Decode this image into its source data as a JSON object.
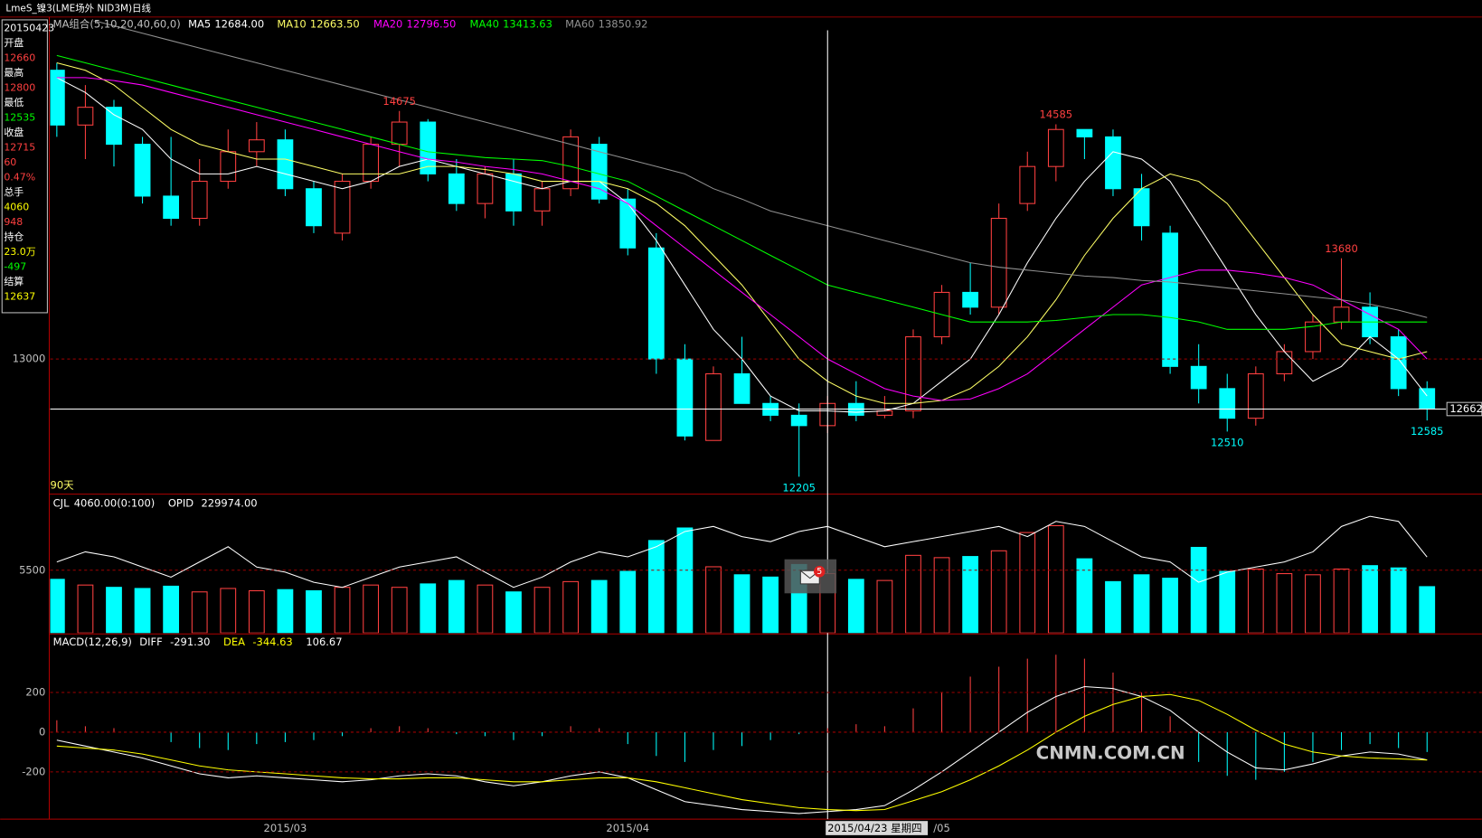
{
  "window_title": "LmeS_镍3(LME场外 NID3M)日线",
  "sidebar": [
    {
      "text": "20150423",
      "color": "#ffffff"
    },
    {
      "text": "开盘",
      "color": "#ffffff"
    },
    {
      "text": "12660",
      "color": "#ff4040"
    },
    {
      "text": "最高",
      "color": "#ffffff"
    },
    {
      "text": "12800",
      "color": "#ff4040"
    },
    {
      "text": "最低",
      "color": "#ffffff"
    },
    {
      "text": "12535",
      "color": "#00ff00"
    },
    {
      "text": "收盘",
      "color": "#ffffff"
    },
    {
      "text": "12715",
      "color": "#ff4040"
    },
    {
      "text": "60",
      "color": "#ff4040"
    },
    {
      "text": "0.47%",
      "color": "#ff4040"
    },
    {
      "text": "总手",
      "color": "#ffffff"
    },
    {
      "text": "4060",
      "color": "#ffff00"
    },
    {
      "text": "948",
      "color": "#ff4040"
    },
    {
      "text": "持仓",
      "color": "#ffffff"
    },
    {
      "text": "23.0万",
      "color": "#ffff00"
    },
    {
      "text": "-497",
      "color": "#00ff00"
    },
    {
      "text": "结算",
      "color": "#ffffff"
    },
    {
      "text": "12637",
      "color": "#ffff00"
    }
  ],
  "watermark": "CNMN.COM.CN",
  "mail_badge": "5",
  "chart_data": [
    {
      "type": "candlestick",
      "title": "MA组合(5,10,20,40,60,0)",
      "period_label": "90天",
      "categories": [
        null,
        null,
        null,
        null,
        null,
        null,
        null,
        null,
        "2015/03",
        null,
        null,
        null,
        null,
        null,
        null,
        null,
        null,
        null,
        null,
        null,
        "2015/04",
        null,
        null,
        null,
        null,
        null,
        null,
        "2015/04/23 星期四",
        null,
        null,
        null,
        "/05",
        null,
        null,
        null,
        null,
        null,
        null,
        null,
        null,
        null,
        null,
        null,
        null,
        null,
        null,
        null,
        null,
        null
      ],
      "candles": {
        "open": [
          14950,
          14580,
          14700,
          14450,
          14100,
          13950,
          14200,
          14400,
          14480,
          14150,
          13850,
          14200,
          14450,
          14600,
          14250,
          14050,
          14250,
          14000,
          14150,
          14450,
          14080,
          13750,
          13000,
          12450,
          12900,
          12700,
          12620,
          12550,
          12700,
          12620,
          12650,
          13150,
          13450,
          13350,
          14050,
          14300,
          14550,
          14500,
          14150,
          13850,
          12950,
          12800,
          12600,
          12900,
          13050,
          13250,
          13350,
          13150,
          12800
        ],
        "high": [
          15000,
          14850,
          14750,
          14500,
          14500,
          14350,
          14550,
          14600,
          14550,
          14200,
          14250,
          14500,
          14675,
          14620,
          14350,
          14300,
          14350,
          14200,
          14550,
          14500,
          14150,
          13850,
          13100,
          12950,
          13150,
          12750,
          12700,
          12750,
          12850,
          12750,
          13200,
          13500,
          13650,
          14050,
          14400,
          14585,
          14550,
          14550,
          14250,
          13900,
          13100,
          12900,
          12950,
          13100,
          13300,
          13680,
          13450,
          13200,
          12850
        ],
        "low": [
          14500,
          14350,
          14300,
          14050,
          13900,
          13900,
          14150,
          14300,
          14100,
          13850,
          13800,
          14150,
          14300,
          14200,
          14000,
          13950,
          13900,
          13900,
          14100,
          14050,
          13700,
          12900,
          12450,
          12450,
          12700,
          12580,
          12205,
          12500,
          12580,
          12600,
          12600,
          13100,
          13300,
          13300,
          14000,
          14200,
          14350,
          14100,
          13800,
          12900,
          12700,
          12510,
          12550,
          12850,
          13000,
          13200,
          13100,
          12750,
          12585
        ],
        "close": [
          14580,
          14700,
          14450,
          14100,
          13950,
          14200,
          14400,
          14480,
          14150,
          13900,
          14200,
          14450,
          14600,
          14250,
          14050,
          14250,
          14000,
          14150,
          14500,
          14080,
          13750,
          13000,
          12480,
          12900,
          12700,
          12620,
          12550,
          12700,
          12620,
          12650,
          13150,
          13450,
          13350,
          13950,
          14300,
          14550,
          14500,
          14150,
          13900,
          12950,
          12800,
          12600,
          12900,
          13050,
          13250,
          13350,
          13150,
          12800,
          12662
        ]
      },
      "up_color": "#ff4040",
      "down_color": "#00ffff",
      "ylim": [
        12094,
        15284
      ],
      "yticks": [
        13000
      ],
      "crosshair": 12662,
      "annotations": [
        14675,
        12205,
        14585,
        12510,
        13680,
        12585
      ],
      "series": [
        {
          "name": "MA5",
          "value_label": "12684.00",
          "color": "#ffffff",
          "values": [
            14900,
            14800,
            14650,
            14550,
            14350,
            14250,
            14250,
            14300,
            14250,
            14200,
            14150,
            14200,
            14300,
            14350,
            14300,
            14250,
            14200,
            14150,
            14200,
            14200,
            14050,
            13800,
            13500,
            13200,
            13000,
            12750,
            12650,
            12650,
            12640,
            12650,
            12700,
            12850,
            13000,
            13300,
            13650,
            13950,
            14200,
            14400,
            14350,
            14200,
            13900,
            13600,
            13300,
            13050,
            12850,
            12950,
            13150,
            13000,
            12750
          ]
        },
        {
          "name": "MA10",
          "value_label": "12663.50",
          "color": "#ffff66",
          "values": [
            15000,
            14950,
            14850,
            14700,
            14550,
            14450,
            14400,
            14350,
            14350,
            14300,
            14250,
            14250,
            14250,
            14300,
            14300,
            14280,
            14250,
            14200,
            14200,
            14200,
            14150,
            14050,
            13900,
            13700,
            13500,
            13250,
            13000,
            12850,
            12750,
            12700,
            12700,
            12720,
            12800,
            12950,
            13150,
            13400,
            13700,
            13950,
            14150,
            14250,
            14200,
            14050,
            13800,
            13550,
            13300,
            13100,
            13050,
            13000,
            13050
          ]
        },
        {
          "name": "MA20",
          "value_label": "12796.50",
          "color": "#ff00ff",
          "values": [
            14900,
            14900,
            14880,
            14850,
            14800,
            14750,
            14700,
            14650,
            14600,
            14550,
            14500,
            14450,
            14400,
            14350,
            14330,
            14300,
            14280,
            14250,
            14200,
            14150,
            14050,
            13900,
            13750,
            13600,
            13450,
            13300,
            13150,
            13000,
            12900,
            12800,
            12750,
            12720,
            12730,
            12800,
            12900,
            13050,
            13200,
            13350,
            13500,
            13550,
            13600,
            13600,
            13580,
            13550,
            13500,
            13400,
            13300,
            13200,
            13000
          ]
        },
        {
          "name": "MA40",
          "value_label": "13413.63",
          "color": "#00ff00",
          "values": [
            15050,
            15000,
            14950,
            14900,
            14850,
            14800,
            14750,
            14700,
            14650,
            14600,
            14550,
            14500,
            14450,
            14400,
            14380,
            14360,
            14350,
            14340,
            14300,
            14250,
            14200,
            14100,
            14000,
            13900,
            13800,
            13700,
            13600,
            13500,
            13450,
            13400,
            13350,
            13300,
            13250,
            13250,
            13250,
            13260,
            13280,
            13300,
            13300,
            13280,
            13250,
            13200,
            13200,
            13200,
            13220,
            13250,
            13250,
            13250,
            13250
          ]
        },
        {
          "name": "MA60",
          "value_label": "13850.92",
          "color": "#909090",
          "values": [
            15350,
            15300,
            15250,
            15200,
            15150,
            15100,
            15050,
            15000,
            14950,
            14900,
            14850,
            14800,
            14750,
            14700,
            14650,
            14600,
            14550,
            14500,
            14450,
            14400,
            14350,
            14300,
            14250,
            14150,
            14080,
            14000,
            13950,
            13900,
            13850,
            13800,
            13750,
            13700,
            13650,
            13620,
            13600,
            13580,
            13560,
            13550,
            13530,
            13520,
            13500,
            13480,
            13460,
            13440,
            13420,
            13400,
            13370,
            13330,
            13280
          ]
        }
      ]
    },
    {
      "type": "volume",
      "title": "CJL",
      "readout": "4060.00(0:100)",
      "values": [
        4700,
        4200,
        4000,
        3900,
        4100,
        3600,
        3900,
        3700,
        3800,
        3700,
        4000,
        4200,
        4000,
        4300,
        4600,
        4200,
        3600,
        4000,
        4500,
        4600,
        5400,
        8100,
        9200,
        5800,
        5100,
        4900,
        6000,
        5200,
        4700,
        4600,
        6800,
        6600,
        6700,
        7200,
        8800,
        9400,
        6500,
        4500,
        5100,
        4800,
        7500,
        5400,
        5600,
        5200,
        5100,
        5600,
        5900,
        5700,
        4060
      ],
      "ylim": [
        0,
        12000
      ],
      "yticks": [
        5500
      ],
      "y2lim": [
        215000,
        242000
      ],
      "series": [
        {
          "name": "OPID",
          "value_label": "229974.00",
          "color": "#ffffff",
          "axis": "y2",
          "values": [
            229000,
            231000,
            230000,
            228000,
            226000,
            229000,
            232000,
            228000,
            227000,
            225000,
            224000,
            226000,
            228000,
            229000,
            230000,
            227000,
            224000,
            226000,
            229000,
            231000,
            230000,
            232000,
            235000,
            236000,
            234000,
            233000,
            235000,
            236000,
            234000,
            232000,
            233000,
            234000,
            235000,
            236000,
            234000,
            237000,
            236000,
            233000,
            230000,
            229000,
            225000,
            227000,
            228000,
            229000,
            231000,
            236000,
            238000,
            237000,
            229974
          ]
        }
      ]
    },
    {
      "type": "macd",
      "title": "MACD(12,26,9)",
      "readout": "106.67",
      "values": [
        60,
        30,
        20,
        0,
        -50,
        -80,
        -90,
        -60,
        -50,
        -40,
        -20,
        20,
        30,
        20,
        -10,
        -20,
        -40,
        -20,
        30,
        20,
        -60,
        -120,
        -150,
        -90,
        -70,
        -40,
        -10,
        20,
        40,
        30,
        120,
        200,
        280,
        330,
        370,
        390,
        370,
        300,
        200,
        80,
        -150,
        -220,
        -240,
        -200,
        -150,
        -90,
        -60,
        -80,
        -100
      ],
      "ylim": [
        -438,
        414
      ],
      "yticks": [
        200,
        0,
        -200
      ],
      "series": [
        {
          "name": "DIFF",
          "value_label": "-291.30",
          "color": "#ffffff",
          "values": [
            -40,
            -70,
            -100,
            -130,
            -170,
            -210,
            -230,
            -220,
            -230,
            -240,
            -250,
            -240,
            -220,
            -210,
            -220,
            -250,
            -270,
            -250,
            -220,
            -200,
            -230,
            -290,
            -350,
            -370,
            -390,
            -400,
            -410,
            -400,
            -390,
            -370,
            -291,
            -200,
            -100,
            0,
            100,
            180,
            230,
            220,
            180,
            110,
            0,
            -100,
            -180,
            -190,
            -160,
            -120,
            -100,
            -110,
            -140
          ]
        },
        {
          "name": "DEA",
          "value_label": "-344.63",
          "color": "#ffff00",
          "values": [
            -70,
            -80,
            -90,
            -110,
            -140,
            -170,
            -190,
            -200,
            -210,
            -220,
            -230,
            -235,
            -235,
            -230,
            -230,
            -240,
            -250,
            -250,
            -240,
            -230,
            -230,
            -250,
            -280,
            -310,
            -340,
            -360,
            -380,
            -390,
            -395,
            -390,
            -345,
            -300,
            -240,
            -170,
            -90,
            0,
            80,
            140,
            180,
            190,
            160,
            90,
            10,
            -60,
            -100,
            -120,
            -130,
            -135,
            -140
          ]
        }
      ]
    }
  ]
}
